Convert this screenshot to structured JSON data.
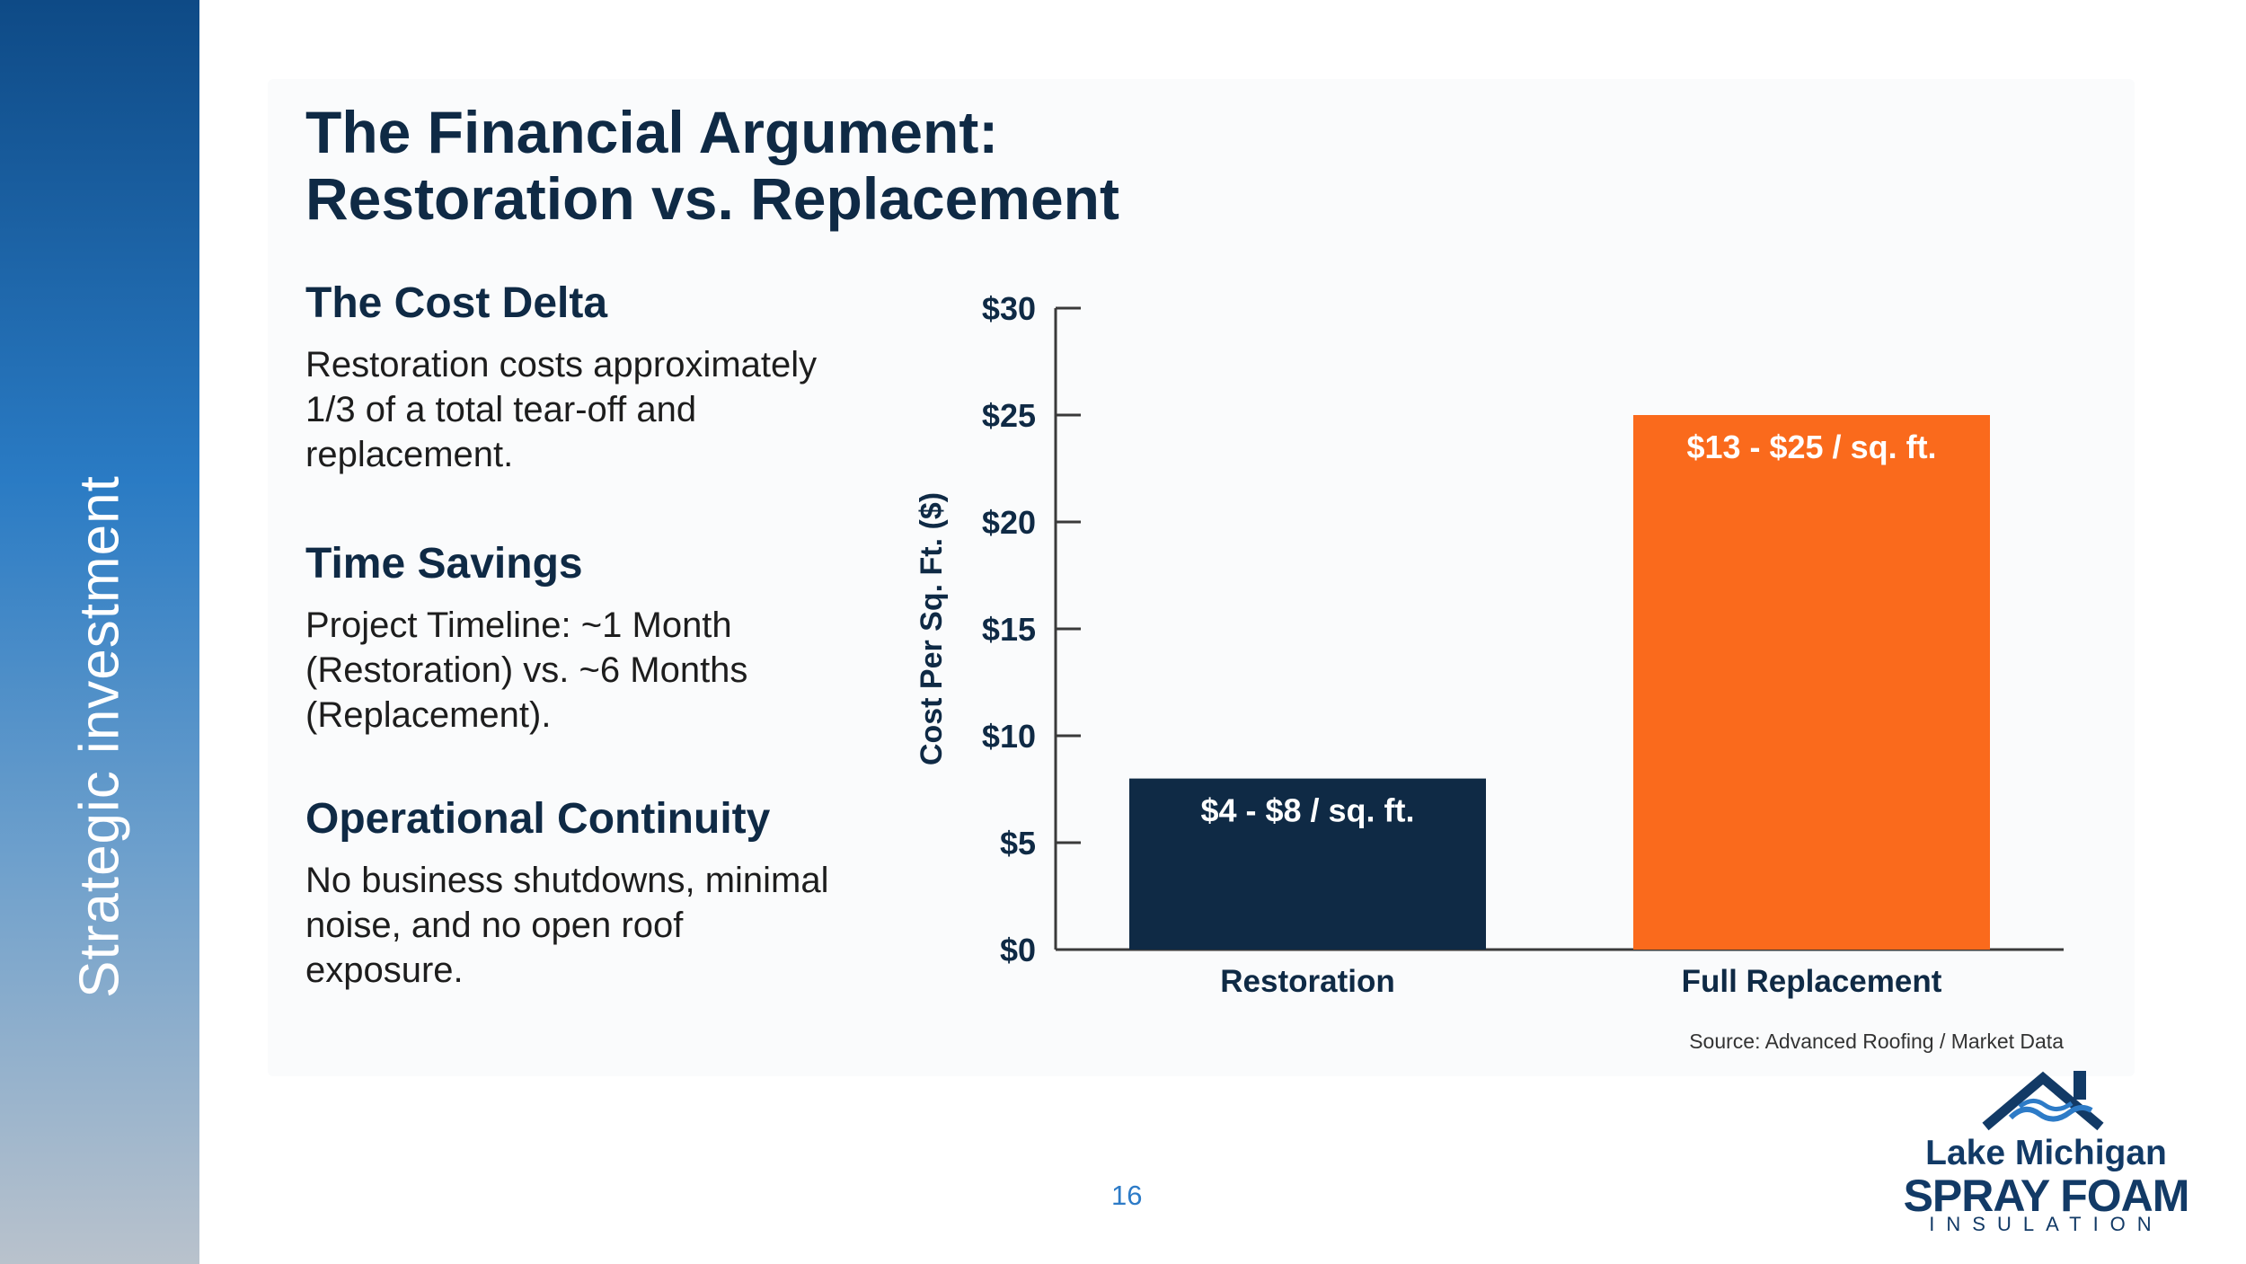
{
  "sidebar": {
    "label": "Strategic investment"
  },
  "title": {
    "line1": "The Financial Argument:",
    "line2": "Restoration vs. Replacement"
  },
  "sections": [
    {
      "heading": "The Cost Delta",
      "body": "Restoration costs approximately 1/3 of a total tear-off and replacement."
    },
    {
      "heading": "Time Savings",
      "body": "Project Timeline: ~1 Month (Restoration) vs. ~6 Months (Replacement)."
    },
    {
      "heading": "Operational Continuity",
      "body": "No business shutdowns, minimal noise, and no open roof exposure."
    }
  ],
  "chart_data": {
    "type": "bar",
    "title": "",
    "xlabel": "",
    "ylabel": "Cost Per Sq. Ft. ($)",
    "categories": [
      "Restoration",
      "Full Replacement"
    ],
    "values": [
      8,
      25
    ],
    "ranges": [
      [
        4,
        8
      ],
      [
        13,
        25
      ]
    ],
    "data_labels": [
      "$4 - $8 / sq. ft.",
      "$13 - $25 / sq. ft."
    ],
    "colors": [
      "#0f2a45",
      "#fa6a1c"
    ],
    "ylim": [
      0,
      30
    ],
    "yticks": [
      0,
      5,
      10,
      15,
      20,
      25,
      30
    ],
    "ytick_labels": [
      "$0",
      "$5",
      "$10",
      "$15",
      "$20",
      "$25",
      "$30"
    ],
    "grid": false,
    "source": "Source: Advanced Roofing / Market Data"
  },
  "page_number": "16",
  "logo": {
    "line1": "Lake Michigan",
    "line2": "SPRAY FOAM",
    "line3": "INSULATION",
    "icon": "house-wave-icon",
    "color": "#123a66",
    "accent": "#2d7bc7"
  }
}
